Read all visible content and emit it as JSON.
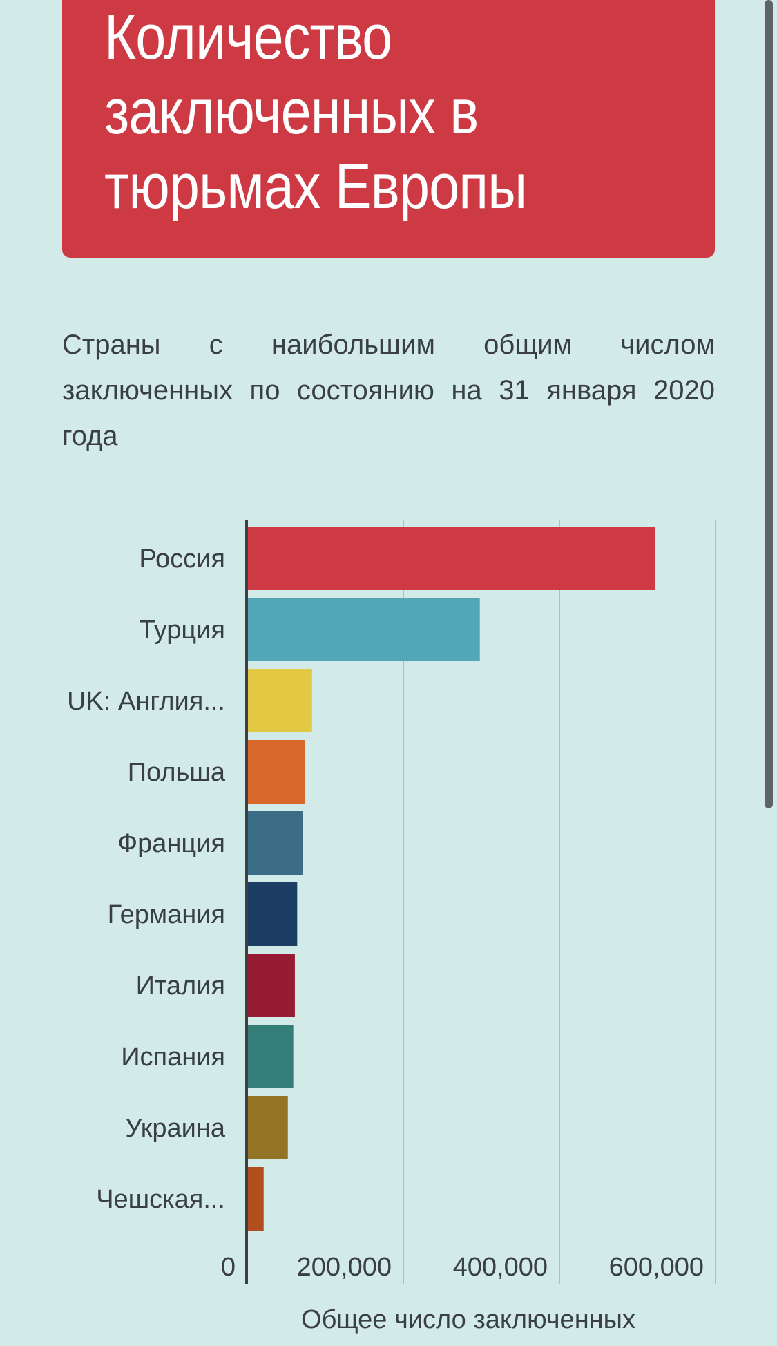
{
  "header": {
    "title_lines": [
      "Количество",
      "заключенных в",
      "тюрьмах Европы"
    ]
  },
  "subtitle": "Страны с наибольшим общим числом заключенных по состоянию на 31 января 2020 года",
  "chart_data": {
    "type": "bar",
    "orientation": "horizontal",
    "categories": [
      "Россия",
      "Турция",
      "UK: Англия...",
      "Польша",
      "Франция",
      "Германия",
      "Италия",
      "Испания",
      "Украина",
      "Чешская..."
    ],
    "values": [
      523000,
      298000,
      83000,
      74000,
      71000,
      64000,
      61000,
      59000,
      52000,
      21000
    ],
    "colors": [
      "#cd3a44",
      "#52a6b6",
      "#e3c844",
      "#d9682c",
      "#3b6d86",
      "#1c3d63",
      "#961c33",
      "#357d78",
      "#937324",
      "#b04e1e"
    ],
    "xlim": [
      0,
      600000
    ],
    "ticks": [
      0,
      200000,
      400000,
      600000
    ],
    "tick_labels": [
      "0",
      "200,000",
      "400,000",
      "600,000"
    ],
    "xlabel": "Общее число заключенных",
    "grid": true
  }
}
